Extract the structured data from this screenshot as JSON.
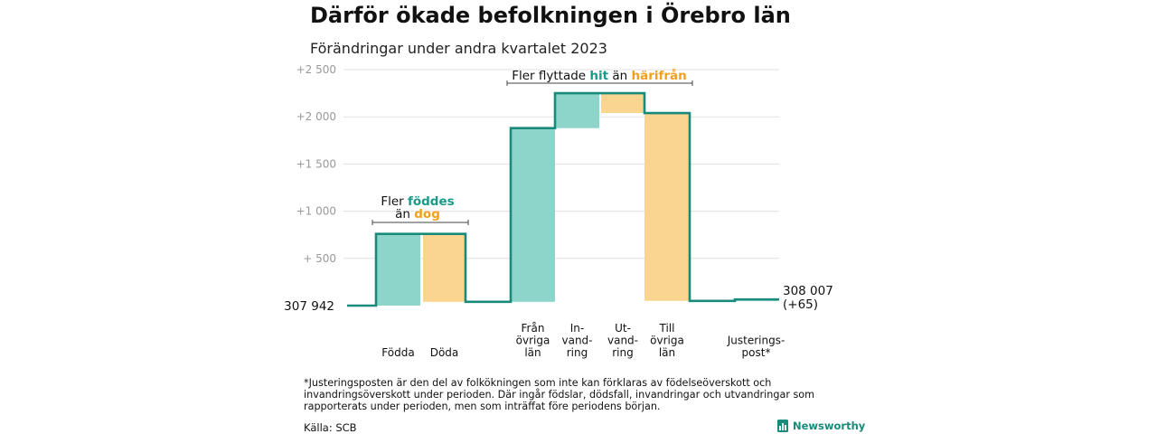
{
  "title": "Därför ökade befolkningen i Örebro län",
  "subtitle": "Förändringar under andra kvartalet 2023",
  "colors": {
    "increase": "#8dd5cb",
    "decrease": "#fad58f",
    "line": "#1a8a7b",
    "hit": "#1a9a88",
    "harifran": "#f0a020",
    "grid": "#e0e0e0"
  },
  "chart_data": {
    "type": "waterfall",
    "y_tick_labels": [
      "+2   500",
      "+2   000",
      "+1   500",
      "+1   000",
      "+   500"
    ],
    "y_ticks_delta": [
      2500,
      2000,
      1500,
      1000,
      500
    ],
    "start_value": 307942,
    "start_label": "307   942",
    "end_label": "308 007",
    "end_change_label": "(+65)",
    "steps": [
      {
        "label_lines": [
          "Födda"
        ],
        "value": 760,
        "kind": "increase"
      },
      {
        "label_lines": [
          "Döda"
        ],
        "value": -720,
        "kind": "decrease"
      },
      {
        "label_lines": [
          "Från",
          "övriga",
          "län"
        ],
        "value": 1840,
        "kind": "increase"
      },
      {
        "label_lines": [
          "In-",
          "vand-",
          "ring"
        ],
        "value": 370,
        "kind": "increase"
      },
      {
        "label_lines": [
          "Ut-",
          "vand-",
          "ring"
        ],
        "value": -210,
        "kind": "decrease"
      },
      {
        "label_lines": [
          "Till",
          "övriga",
          "län"
        ],
        "value": -1990,
        "kind": "decrease"
      },
      {
        "label_lines": [
          "Justerings-",
          "post*"
        ],
        "value": 15,
        "kind": "increase"
      }
    ],
    "annotations": [
      {
        "pre": "Fler ",
        "key1": "föddes",
        "mid": "än ",
        "key2": "dog"
      },
      {
        "pre": "Fler flyttade ",
        "key1": "hit",
        "mid": " än ",
        "key2": "härifrån"
      }
    ]
  },
  "footnote": "*Justeringsposten är den del av folkökningen som inte kan förklaras av födelseöverskott och invandringsöverskott under perioden. Där ingår födslar, dödsfall, invandringar och utvandringar som rapporterats under perioden, men som inträffat före periodens början.",
  "source": "Källa: SCB",
  "logo": {
    "text": "Newsworthy",
    "icon": "newsworthy-chart-icon"
  }
}
